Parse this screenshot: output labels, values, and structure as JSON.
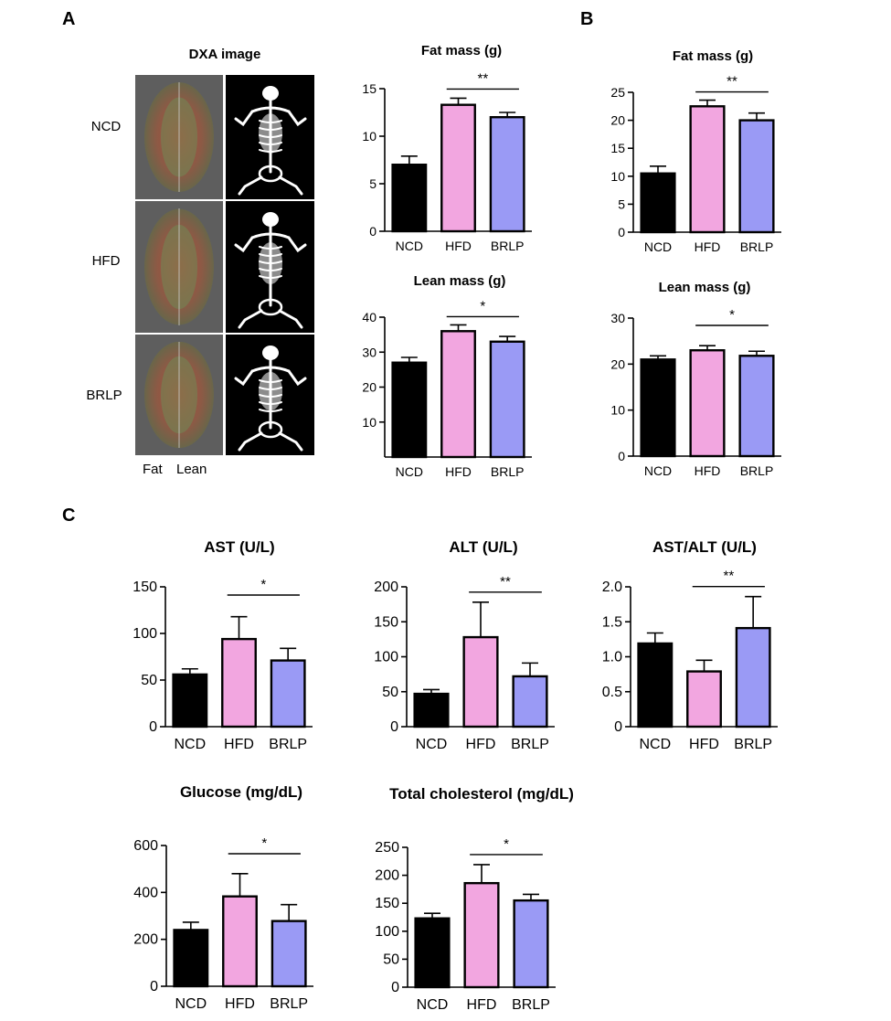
{
  "panel_labels": {
    "a": "A",
    "b": "B",
    "c": "C"
  },
  "dxa": {
    "title": "DXA image",
    "rows": [
      "NCD",
      "HFD",
      "BRLP"
    ],
    "legend_fat": "Fat",
    "legend_lean": "Lean",
    "fat_color": "#e03030",
    "lean_color": "#2aa02a"
  },
  "colors": {
    "NCD": "#000000",
    "HFD": "#f2a6e0",
    "BRLP": "#9a9af5"
  },
  "chart_data": [
    {
      "id": "A-fat",
      "type": "bar",
      "title": "Fat mass (g)",
      "categories": [
        "NCD",
        "HFD",
        "BRLP"
      ],
      "values": [
        7.0,
        13.3,
        12.0
      ],
      "errors": [
        0.9,
        0.7,
        0.5
      ],
      "ylim": [
        0,
        15
      ],
      "yticks": [
        0,
        5,
        10,
        15
      ],
      "ytick_labels": [
        "0",
        "5",
        "10",
        "15"
      ],
      "sig": {
        "label": "**",
        "from": 1,
        "to": 2
      }
    },
    {
      "id": "A-lean",
      "type": "bar",
      "title": "Lean mass (g)",
      "categories": [
        "NCD",
        "HFD",
        "BRLP"
      ],
      "values": [
        27,
        36,
        33
      ],
      "errors": [
        1.5,
        1.8,
        1.5
      ],
      "ylim": [
        0,
        40
      ],
      "yticks": [
        10,
        20,
        30,
        40
      ],
      "ytick_labels": [
        "10",
        "20",
        "30",
        "40"
      ],
      "sig": {
        "label": "*",
        "from": 1,
        "to": 2
      }
    },
    {
      "id": "B-fat",
      "type": "bar",
      "title": "Fat mass (g)",
      "categories": [
        "NCD",
        "HFD",
        "BRLP"
      ],
      "values": [
        10.5,
        22.5,
        20.0
      ],
      "errors": [
        1.3,
        1.1,
        1.3
      ],
      "ylim": [
        0,
        25
      ],
      "yticks": [
        0,
        5,
        10,
        15,
        20,
        25
      ],
      "ytick_labels": [
        "0",
        "5",
        "10",
        "15",
        "20",
        "25"
      ],
      "sig": {
        "label": "**",
        "from": 1,
        "to": 2
      }
    },
    {
      "id": "B-lean",
      "type": "bar",
      "title": "Lean mass (g)",
      "categories": [
        "NCD",
        "HFD",
        "BRLP"
      ],
      "values": [
        21,
        23,
        21.8
      ],
      "errors": [
        0.8,
        1.0,
        1.0
      ],
      "ylim": [
        0,
        30
      ],
      "yticks": [
        0,
        10,
        20,
        30
      ],
      "ytick_labels": [
        "0",
        "10",
        "20",
        "30"
      ],
      "sig": {
        "label": "*",
        "from": 1,
        "to": 2
      }
    },
    {
      "id": "C-ast",
      "type": "bar",
      "title": "AST (U/L)",
      "categories": [
        "NCD",
        "HFD",
        "BRLP"
      ],
      "values": [
        56,
        94,
        71
      ],
      "errors": [
        6,
        24,
        13
      ],
      "ylim": [
        0,
        150
      ],
      "yticks": [
        0,
        50,
        100,
        150
      ],
      "ytick_labels": [
        "0",
        "50",
        "100",
        "150"
      ],
      "sig": {
        "label": "*",
        "from": 1,
        "to": 2
      }
    },
    {
      "id": "C-alt",
      "type": "bar",
      "title": "ALT (U/L)",
      "categories": [
        "NCD",
        "HFD",
        "BRLP"
      ],
      "values": [
        47,
        128,
        72
      ],
      "errors": [
        6,
        50,
        19
      ],
      "ylim": [
        0,
        200
      ],
      "yticks": [
        0,
        50,
        100,
        150,
        200
      ],
      "ytick_labels": [
        "0",
        "50",
        "100",
        "150",
        "200"
      ],
      "sig": {
        "label": "**",
        "from": 1,
        "to": 2
      }
    },
    {
      "id": "C-ratio",
      "type": "bar",
      "title": "AST/ALT (U/L)",
      "categories": [
        "NCD",
        "HFD",
        "BRLP"
      ],
      "values": [
        1.19,
        0.79,
        1.41
      ],
      "errors": [
        0.15,
        0.16,
        0.45
      ],
      "ylim": [
        0,
        2.0
      ],
      "yticks": [
        0,
        0.5,
        1.0,
        1.5,
        2.0
      ],
      "ytick_labels": [
        "0",
        "0.5",
        "1.0",
        "1.5",
        "2.0"
      ],
      "sig": {
        "label": "**",
        "from": 1,
        "to": 2
      }
    },
    {
      "id": "C-glucose",
      "type": "bar",
      "title": "Glucose (mg/dL)",
      "categories": [
        "NCD",
        "HFD",
        "BRLP"
      ],
      "values": [
        240,
        383,
        278
      ],
      "errors": [
        33,
        97,
        70
      ],
      "ylim": [
        0,
        600
      ],
      "yticks": [
        0,
        200,
        400,
        600
      ],
      "ytick_labels": [
        "0",
        "200",
        "400",
        "600"
      ],
      "sig": {
        "label": "*",
        "from": 1,
        "to": 2
      }
    },
    {
      "id": "C-chol",
      "type": "bar",
      "title": "Total cholesterol (mg/dL)",
      "categories": [
        "NCD",
        "HFD",
        "BRLP"
      ],
      "values": [
        123,
        186,
        155
      ],
      "errors": [
        9,
        33,
        11
      ],
      "ylim": [
        0,
        250
      ],
      "yticks": [
        0,
        50,
        100,
        150,
        200,
        250
      ],
      "ytick_labels": [
        "0",
        "50",
        "100",
        "150",
        "200",
        "250"
      ],
      "sig": {
        "label": "*",
        "from": 1,
        "to": 2
      }
    }
  ]
}
